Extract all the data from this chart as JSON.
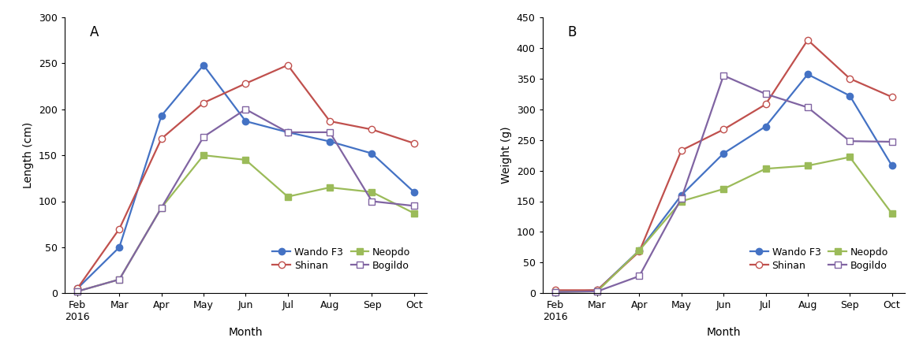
{
  "months_plain": [
    "Feb",
    "Mar",
    "Apr",
    "May",
    "Jun",
    "Jul",
    "Aug",
    "Sep",
    "Oct"
  ],
  "panel_A": {
    "title": "A",
    "ylabel": "Length (cm)",
    "xlabel": "Month",
    "ylim": [
      0,
      300
    ],
    "yticks": [
      0,
      50,
      100,
      150,
      200,
      250,
      300
    ],
    "series": {
      "Wando F3": {
        "values": [
          5,
          50,
          193,
          248,
          187,
          175,
          165,
          152,
          110
        ],
        "color": "#4472C4",
        "marker": "o",
        "markerfacecolor": "#4472C4",
        "markeredgecolor": "#4472C4"
      },
      "Shinan": {
        "values": [
          5,
          70,
          168,
          207,
          228,
          248,
          187,
          178,
          163
        ],
        "color": "#C0504D",
        "marker": "o",
        "markerfacecolor": "white",
        "markeredgecolor": "#C0504D"
      },
      "Neopdo": {
        "values": [
          2,
          15,
          93,
          150,
          145,
          105,
          115,
          110,
          87
        ],
        "color": "#9BBB59",
        "marker": "s",
        "markerfacecolor": "#9BBB59",
        "markeredgecolor": "#9BBB59"
      },
      "Bogildo": {
        "values": [
          2,
          15,
          93,
          170,
          200,
          175,
          175,
          100,
          95
        ],
        "color": "#8064A2",
        "marker": "s",
        "markerfacecolor": "white",
        "markeredgecolor": "#8064A2"
      }
    }
  },
  "panel_B": {
    "title": "B",
    "ylabel": "Weight (g)",
    "xlabel": "Month",
    "ylim": [
      0,
      450
    ],
    "yticks": [
      0,
      50,
      100,
      150,
      200,
      250,
      300,
      350,
      400,
      450
    ],
    "series": {
      "Wando F3": {
        "values": [
          2,
          5,
          70,
          160,
          228,
          272,
          357,
          322,
          208
        ],
        "color": "#4472C4",
        "marker": "o",
        "markerfacecolor": "#4472C4",
        "markeredgecolor": "#4472C4"
      },
      "Shinan": {
        "values": [
          5,
          5,
          68,
          233,
          267,
          308,
          413,
          350,
          320
        ],
        "color": "#C0504D",
        "marker": "o",
        "markerfacecolor": "white",
        "markeredgecolor": "#C0504D"
      },
      "Neopdo": {
        "values": [
          2,
          3,
          70,
          150,
          170,
          203,
          208,
          222,
          130
        ],
        "color": "#9BBB59",
        "marker": "s",
        "markerfacecolor": "#9BBB59",
        "markeredgecolor": "#9BBB59"
      },
      "Bogildo": {
        "values": [
          2,
          3,
          28,
          155,
          355,
          325,
          303,
          248,
          247
        ],
        "color": "#8064A2",
        "marker": "s",
        "markerfacecolor": "white",
        "markeredgecolor": "#8064A2"
      }
    }
  },
  "legend_order": [
    "Wando F3",
    "Shinan",
    "Neopdo",
    "Bogildo"
  ],
  "background_color": "#ffffff",
  "fontsize_label": 10,
  "fontsize_tick": 9,
  "fontsize_title": 12,
  "fontsize_legend": 9,
  "line_width": 1.6,
  "marker_size": 6
}
